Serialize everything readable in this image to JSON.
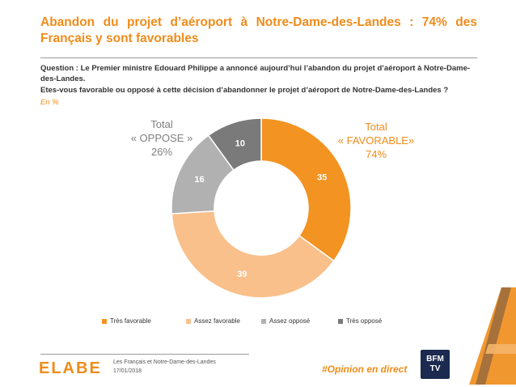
{
  "header": {
    "title": "Abandon du projet d’aéroport à Notre-Dame-des-Landes : 74% des Français y sont favorables",
    "question": "Question : Le Premier ministre Edouard Philippe a annoncé aujourd’hui l’abandon du projet d’aéroport à Notre-Dame-des-Landes.",
    "subquestion": "Etes-vous favorable ou opposé à cette décision d’abandonner le projet d’aéroport de Notre-Dame-des-Landes ?",
    "unit": "En %"
  },
  "totals": {
    "oppose": {
      "line1": "Total",
      "line2": "« OPPOSE »",
      "value": "26%"
    },
    "favorable": {
      "line1": "Total",
      "line2": "« FAVORABLE»",
      "value": "74%"
    }
  },
  "chart_data": {
    "type": "pie",
    "donut": true,
    "categories": [
      "Très favorable",
      "Assez favorable",
      "Assez opposé",
      "Très opposé"
    ],
    "values": [
      35,
      39,
      16,
      10
    ],
    "colors": [
      "#f39322",
      "#f9c08b",
      "#b1b1b1",
      "#7a7a7a"
    ],
    "label_colors": [
      "#ffffff",
      "#ffffff",
      "#ffffff",
      "#ffffff"
    ],
    "legend_position": "bottom",
    "start": "top",
    "direction": "clockwise"
  },
  "footer": {
    "logo": "ELABE",
    "survey_title": "Les Français et Notre-Dame-des-Landes",
    "date": "17/01/2018",
    "hashtag": "#Opinion en direct",
    "partner_logo_line1": "BFM",
    "partner_logo_line2": "TV"
  }
}
